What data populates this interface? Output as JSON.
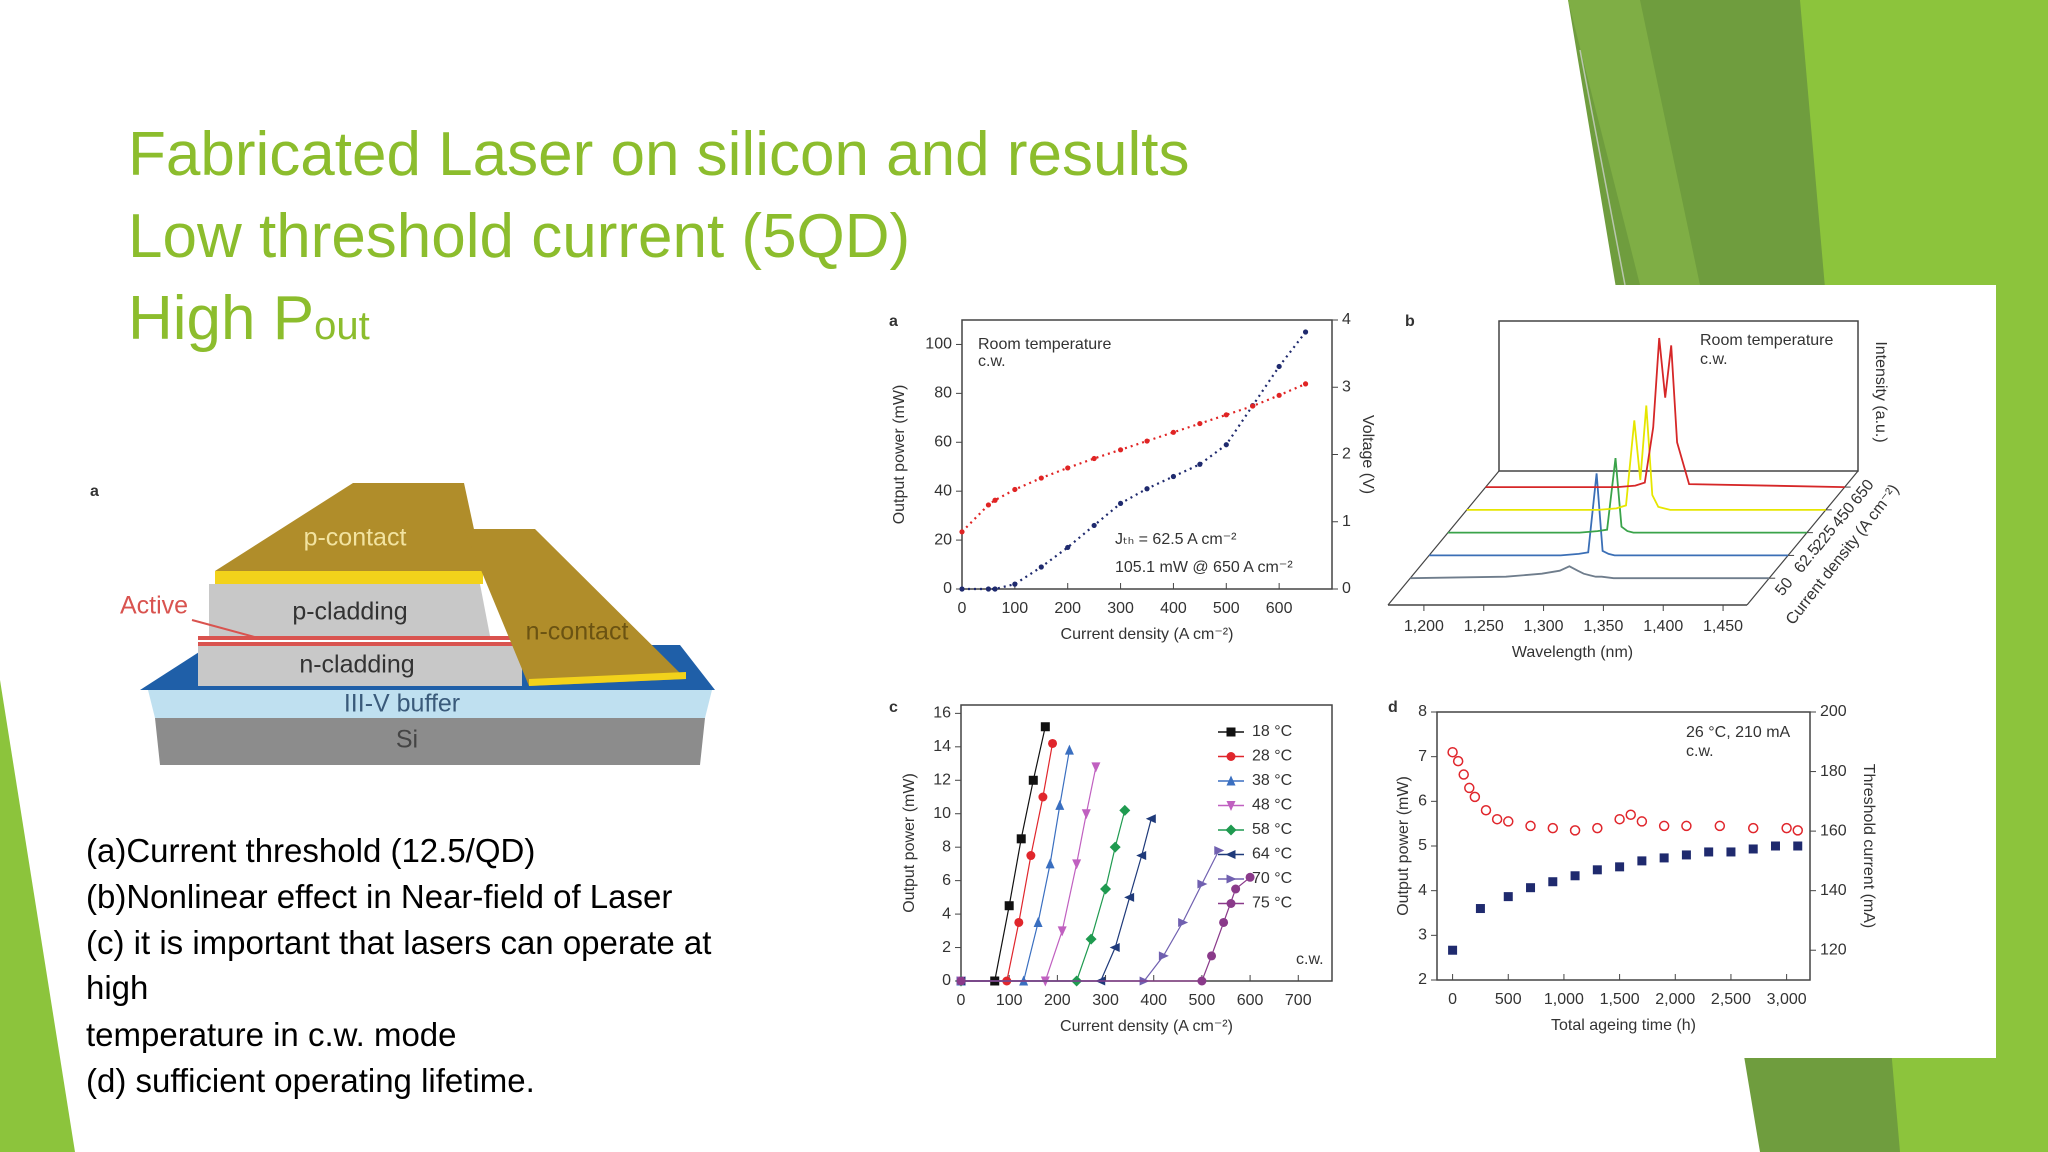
{
  "title": [
    "Fabricated Laser on silicon and results",
    "Low threshold current (5QD)",
    "High P"
  ],
  "title_subscript": "out",
  "diagram": {
    "label": "a",
    "layers": {
      "p_contact": "p-contact",
      "p_cladding": "p-cladding",
      "active": "Active",
      "n_cladding": "n-cladding",
      "n_contact": "n-contact",
      "buffer": "III-V buffer",
      "substrate": "Si"
    }
  },
  "captions": [
    "(a)Current threshold (12.5/QD)",
    "(b)Nonlinear effect in Near-field of Laser",
    "(c) it is important that lasers can operate at",
    "high",
    "temperature in c.w. mode",
    "(d) sufficient operating lifetime."
  ],
  "chart_data": [
    {
      "type": "line",
      "label": "a",
      "x": [
        0,
        50,
        62.5,
        100,
        150,
        200,
        250,
        300,
        350,
        400,
        450,
        500,
        550,
        600,
        650
      ],
      "xlim": [
        0,
        700
      ],
      "xticks": [
        0,
        100,
        200,
        300,
        400,
        500,
        600
      ],
      "ylim": [
        0,
        110
      ],
      "yticks": [
        0,
        20,
        40,
        60,
        80,
        100
      ],
      "y2lim": [
        0,
        4
      ],
      "y2ticks": [
        0,
        1,
        2,
        3,
        4
      ],
      "xlabel": "Current density (A cm⁻²)",
      "ylabel": "Output power (mW)",
      "y2label": "Voltage (V)",
      "annotations": [
        "Room temperature",
        "c.w.",
        "Jₜₕ = 62.5 A cm⁻²",
        "105.1 mW @ 650 A cm⁻²"
      ],
      "series": [
        {
          "color": "#1f2a6e",
          "marker": "dot",
          "values": [
            0,
            0,
            0,
            2,
            9,
            17,
            26,
            35,
            41,
            46,
            51,
            59,
            75,
            91,
            105.1
          ]
        },
        {
          "color": "#e02424",
          "marker": "dot",
          "axis": "y2",
          "values": [
            0.85,
            1.25,
            1.32,
            1.48,
            1.65,
            1.8,
            1.94,
            2.07,
            2.2,
            2.33,
            2.46,
            2.59,
            2.72,
            2.88,
            3.05
          ]
        }
      ]
    },
    {
      "type": "waterfall",
      "label": "b",
      "x": [
        1170,
        1250,
        1280,
        1295,
        1303,
        1310,
        1315,
        1320,
        1325,
        1330,
        1340,
        1470
      ],
      "xlim": [
        1170,
        1470
      ],
      "xticks": [
        {
          "value": 1200,
          "label": "1,200"
        },
        {
          "value": 1250,
          "label": "1,250"
        },
        {
          "value": 1300,
          "label": "1,300"
        },
        {
          "value": 1350,
          "label": "1,350"
        },
        {
          "value": 1400,
          "label": "1,400"
        },
        {
          "value": 1450,
          "label": "1,450"
        }
      ],
      "ylim": [
        0,
        110
      ],
      "zticks": [
        50,
        62.5,
        225,
        450,
        650
      ],
      "xlabel": "Wavelength (nm)",
      "ylabel": "Intensity (a.u.)",
      "zlabel": "Current density (A cm⁻²)",
      "annotations": [
        "Room temperature",
        "c.w."
      ],
      "series": [
        {
          "color": "#6f7d8c",
          "values": [
            0,
            1,
            3,
            5,
            8,
            5,
            3,
            2,
            1,
            1,
            0,
            0
          ]
        },
        {
          "color": "#3b6fb6",
          "values": [
            0,
            0,
            0,
            1,
            2,
            55,
            3,
            1,
            0,
            0,
            0,
            0
          ]
        },
        {
          "color": "#3aa34a",
          "values": [
            0,
            0,
            0,
            1,
            2,
            50,
            4,
            1,
            0,
            0,
            0,
            0
          ]
        },
        {
          "color": "#e6e600",
          "values": [
            0,
            0,
            0,
            1,
            3,
            60,
            20,
            70,
            10,
            2,
            0,
            0
          ]
        },
        {
          "color": "#d62728",
          "values": [
            0,
            0,
            0,
            1,
            3,
            40,
            100,
            60,
            95,
            30,
            2,
            0
          ]
        }
      ]
    },
    {
      "type": "line",
      "label": "c",
      "xlim": [
        0,
        770
      ],
      "xticks": [
        0,
        100,
        200,
        300,
        400,
        500,
        600,
        700
      ],
      "ylim": [
        0,
        16.5
      ],
      "yticks": [
        0,
        2,
        4,
        6,
        8,
        10,
        12,
        14,
        16
      ],
      "xlabel": "Current density (A cm⁻²)",
      "ylabel": "Output power (mW)",
      "annotations": [
        "c.w."
      ],
      "legend": "right",
      "series": [
        {
          "name": "18 °C",
          "color": "#111111",
          "marker": "square",
          "x": [
            0,
            70,
            100,
            125,
            150,
            175
          ],
          "values": [
            0,
            0,
            4.5,
            8.5,
            12,
            15.2
          ]
        },
        {
          "name": "28 °C",
          "color": "#e0262c",
          "marker": "circle",
          "x": [
            0,
            95,
            120,
            145,
            170,
            190
          ],
          "values": [
            0,
            0,
            3.5,
            7.5,
            11,
            14.2
          ]
        },
        {
          "name": "38 °C",
          "color": "#3a6fc0",
          "marker": "triangle-up",
          "x": [
            0,
            130,
            160,
            185,
            205,
            225
          ],
          "values": [
            0,
            0,
            3.5,
            7,
            10.5,
            13.8
          ]
        },
        {
          "name": "48 °C",
          "color": "#c060c0",
          "marker": "triangle-down",
          "x": [
            0,
            175,
            210,
            240,
            260,
            280
          ],
          "values": [
            0,
            0,
            3,
            7,
            10,
            12.8
          ]
        },
        {
          "name": "58 °C",
          "color": "#1f9a50",
          "marker": "diamond",
          "x": [
            0,
            240,
            270,
            300,
            320,
            340
          ],
          "values": [
            0,
            0,
            2.5,
            5.5,
            8,
            10.2
          ]
        },
        {
          "name": "64 °C",
          "color": "#1f3a7a",
          "marker": "triangle-left",
          "x": [
            0,
            290,
            320,
            350,
            375,
            395
          ],
          "values": [
            0,
            0,
            2,
            5,
            7.5,
            9.7
          ]
        },
        {
          "name": "70 °C",
          "color": "#7060b0",
          "marker": "triangle-right",
          "x": [
            0,
            380,
            420,
            460,
            500,
            535
          ],
          "values": [
            0,
            0,
            1.5,
            3.5,
            5.8,
            7.8
          ]
        },
        {
          "name": "75 °C",
          "color": "#8a3a8a",
          "marker": "circle",
          "x": [
            0,
            500,
            520,
            545,
            570,
            600
          ],
          "values": [
            0,
            0,
            1.5,
            3.5,
            5.5,
            6.2
          ]
        }
      ]
    },
    {
      "type": "scatter",
      "label": "d",
      "xlim": [
        -140,
        3210
      ],
      "xticks": [
        0,
        500,
        {
          "value": 1000,
          "label": "1,000"
        },
        {
          "value": 1500,
          "label": "1,500"
        },
        {
          "value": 2000,
          "label": "2,000"
        },
        {
          "value": 2500,
          "label": "2,500"
        },
        {
          "value": 3000,
          "label": "3,000"
        }
      ],
      "ylim": [
        2,
        8
      ],
      "yticks": [
        2,
        3,
        4,
        5,
        6,
        7,
        8
      ],
      "y2lim": [
        110,
        200
      ],
      "y2ticks": [
        120,
        140,
        160,
        180,
        200
      ],
      "xlabel": "Total ageing time (h)",
      "ylabel": "Output power (mW)",
      "y2label": "Threshold current (mA)",
      "annotations": [
        "26 °C, 210 mA",
        "c.w."
      ],
      "series": [
        {
          "color": "#e0262c",
          "marker": "circle-open",
          "x": [
            0,
            50,
            100,
            150,
            200,
            300,
            400,
            500,
            700,
            900,
            1100,
            1300,
            1500,
            1600,
            1700,
            1900,
            2100,
            2400,
            2700,
            3000,
            3100
          ],
          "values": [
            7.1,
            6.9,
            6.6,
            6.3,
            6.1,
            5.8,
            5.6,
            5.55,
            5.45,
            5.4,
            5.35,
            5.4,
            5.6,
            5.7,
            5.55,
            5.45,
            5.45,
            5.45,
            5.4,
            5.4,
            5.35
          ]
        },
        {
          "color": "#1f2a6e",
          "marker": "square",
          "axis": "y2",
          "x": [
            0,
            250,
            500,
            700,
            900,
            1100,
            1300,
            1500,
            1700,
            1900,
            2100,
            2300,
            2500,
            2700,
            2900,
            3100
          ],
          "values": [
            120,
            134,
            138,
            141,
            143,
            145,
            147,
            148,
            150,
            151,
            152,
            153,
            153,
            154,
            155,
            155
          ]
        }
      ]
    }
  ]
}
